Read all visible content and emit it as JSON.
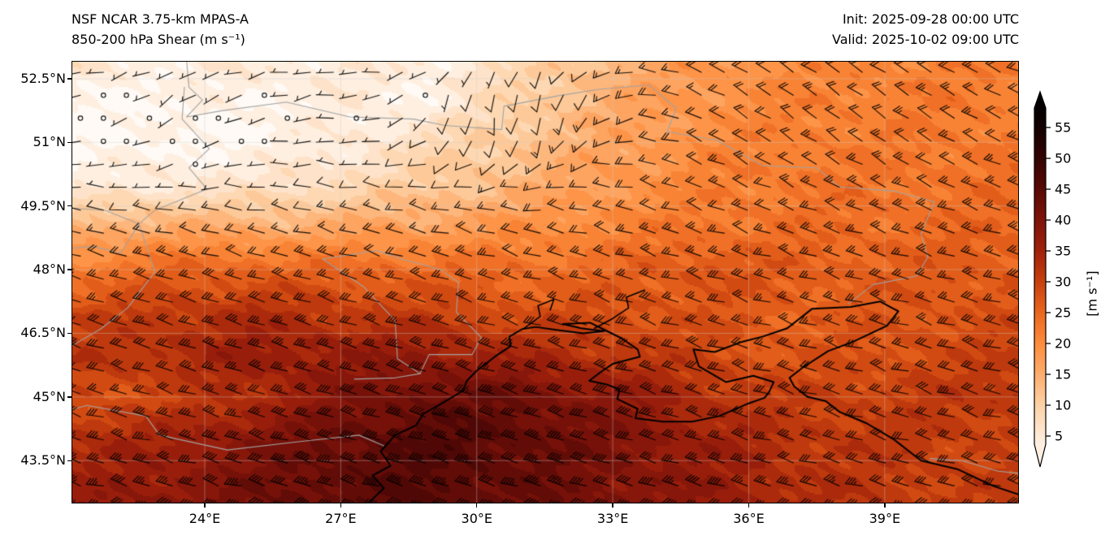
{
  "figure": {
    "title_line1": "NSF NCAR 3.75-km MPAS-A",
    "title_line2": "850-200 hPa Shear (m s⁻¹)",
    "init_label": "Init: 2025-09-28 00:00 UTC",
    "valid_label": "Valid: 2025-10-02 09:00 UTC"
  },
  "chart_data": {
    "type": "heatmap",
    "title": "850-200 hPa Shear (m s⁻¹)",
    "model": "NSF NCAR 3.75-km MPAS-A",
    "init_time": "2025-09-28 00:00 UTC",
    "valid_time": "2025-10-02 09:00 UTC",
    "units": "m s⁻¹",
    "extent": {
      "lon_min": 21.06,
      "lon_max": 41.96,
      "lat_min": 42.49,
      "lat_max": 52.92
    },
    "x_ticks": [
      {
        "label": "24°E",
        "lon": 24
      },
      {
        "label": "27°E",
        "lon": 27
      },
      {
        "label": "30°E",
        "lon": 30
      },
      {
        "label": "33°E",
        "lon": 33
      },
      {
        "label": "36°E",
        "lon": 36
      },
      {
        "label": "39°E",
        "lon": 39
      }
    ],
    "y_ticks": [
      {
        "label": "52.5°N",
        "lat": 52.5
      },
      {
        "label": "51°N",
        "lat": 51
      },
      {
        "label": "49.5°N",
        "lat": 49.5
      },
      {
        "label": "48°N",
        "lat": 48
      },
      {
        "label": "46.5°N",
        "lat": 46.5
      },
      {
        "label": "45°N",
        "lat": 45
      },
      {
        "label": "43.5°N",
        "lat": 43.5
      }
    ],
    "contour_interval": 2.5,
    "shear_grid": {
      "lons": [
        21,
        23,
        25,
        27,
        29,
        31,
        33,
        35,
        37,
        39,
        41.5
      ],
      "lats": [
        53,
        52,
        51,
        50,
        49,
        48,
        47,
        46,
        45,
        44,
        43,
        42.5
      ],
      "values_ms": [
        [
          6,
          4,
          5,
          5,
          4,
          8,
          14,
          18,
          20,
          21,
          22
        ],
        [
          2,
          2,
          3,
          4,
          3,
          10,
          15,
          19,
          21,
          22,
          22
        ],
        [
          2,
          2,
          2,
          4,
          8,
          12,
          16,
          20,
          22,
          22,
          23
        ],
        [
          4,
          5,
          6,
          8,
          11,
          14,
          18,
          21,
          23,
          23,
          24
        ],
        [
          14,
          16,
          15,
          16,
          17,
          19,
          21,
          23,
          24,
          24,
          25
        ],
        [
          22,
          25,
          26,
          25,
          25,
          24,
          25,
          28,
          26,
          26,
          27
        ],
        [
          29,
          31,
          33,
          31,
          30,
          28,
          28,
          27,
          26,
          27,
          28
        ],
        [
          31,
          33,
          36,
          37,
          37,
          34,
          32,
          29,
          27,
          28,
          30
        ],
        [
          28,
          29,
          33,
          39,
          43,
          42,
          38,
          33,
          30,
          30,
          32
        ],
        [
          33,
          35,
          39,
          43,
          46,
          44,
          40,
          36,
          32,
          31,
          30
        ],
        [
          35,
          37,
          41,
          44,
          45,
          43,
          40,
          37,
          33,
          31,
          30
        ],
        [
          36,
          38,
          41,
          44,
          45,
          43,
          40,
          37,
          34,
          31,
          30
        ]
      ]
    },
    "wind_barbs": {
      "convention": "half barb = 5 m s⁻¹, full barb = 10 m s⁻¹, calm circle < 2.5 m s⁻¹",
      "base_direction_from_deg": 287,
      "northwest_region_direction_from_deg": 237,
      "north_central_region_direction_from_deg": 192,
      "northeast_region_direction_from_deg": 307,
      "color": "#000000"
    },
    "colormap_stops": [
      [
        0,
        "#ffffff"
      ],
      [
        5,
        "#fee9d6"
      ],
      [
        10,
        "#fdd2a6"
      ],
      [
        15,
        "#fdac6d"
      ],
      [
        20,
        "#fd8c3c"
      ],
      [
        25,
        "#ea661e"
      ],
      [
        30,
        "#c8400e"
      ],
      [
        35,
        "#a1220b"
      ],
      [
        40,
        "#7e1309"
      ],
      [
        45,
        "#580906"
      ],
      [
        50,
        "#330303"
      ],
      [
        57.5,
        "#050000"
      ]
    ],
    "colorbar": {
      "ticks": [
        5,
        10,
        15,
        20,
        25,
        30,
        35,
        40,
        45,
        50,
        55
      ],
      "label": "[m s⁻¹]",
      "vmin": 2.5,
      "vmax": 57.5,
      "extend": "both"
    },
    "map_colors": {
      "coastline": "#000000",
      "border": "#a3a3a3",
      "graticule": "rgba(205,205,205,0.45)"
    },
    "coastlines": [
      [
        [
          27.6,
          42.49
        ],
        [
          27.95,
          42.85
        ],
        [
          27.7,
          43.15
        ],
        [
          28.1,
          43.38
        ],
        [
          27.88,
          43.72
        ],
        [
          28.2,
          44.1
        ],
        [
          28.66,
          44.33
        ],
        [
          28.82,
          44.6
        ],
        [
          29.15,
          44.8
        ],
        [
          29.7,
          45.15
        ],
        [
          29.78,
          45.38
        ],
        [
          30.0,
          45.62
        ],
        [
          30.4,
          45.95
        ],
        [
          30.75,
          46.2
        ],
        [
          30.72,
          46.42
        ],
        [
          31.0,
          46.6
        ],
        [
          31.3,
          46.65
        ],
        [
          31.75,
          46.58
        ],
        [
          32.35,
          46.5
        ],
        [
          32.8,
          46.55
        ],
        [
          32.3,
          46.62
        ],
        [
          31.9,
          46.72
        ],
        [
          32.5,
          46.75
        ],
        [
          33.2,
          46.38
        ],
        [
          33.55,
          46.12
        ],
        [
          33.6,
          45.95
        ],
        [
          33.0,
          45.78
        ],
        [
          32.75,
          45.6
        ],
        [
          32.48,
          45.38
        ],
        [
          32.85,
          45.3
        ],
        [
          33.15,
          45.18
        ],
        [
          33.1,
          44.95
        ],
        [
          33.55,
          44.72
        ],
        [
          33.5,
          44.5
        ],
        [
          34.1,
          44.42
        ],
        [
          34.75,
          44.42
        ],
        [
          35.35,
          44.55
        ],
        [
          36.0,
          44.85
        ],
        [
          36.35,
          44.98
        ],
        [
          36.45,
          45.12
        ],
        [
          36.55,
          45.35
        ],
        [
          36.1,
          45.5
        ],
        [
          35.5,
          45.35
        ],
        [
          34.9,
          45.72
        ],
        [
          34.78,
          46.12
        ],
        [
          35.25,
          46.06
        ],
        [
          35.85,
          46.3
        ],
        [
          36.3,
          46.42
        ],
        [
          36.85,
          46.62
        ],
        [
          37.4,
          47.08
        ],
        [
          38.25,
          47.12
        ],
        [
          38.9,
          47.25
        ],
        [
          39.3,
          47.02
        ],
        [
          39.05,
          46.68
        ],
        [
          38.3,
          46.3
        ],
        [
          37.75,
          46.08
        ],
        [
          37.2,
          45.7
        ],
        [
          36.9,
          45.45
        ],
        [
          37.0,
          45.25
        ],
        [
          37.3,
          45.0
        ],
        [
          37.7,
          44.9
        ],
        [
          38.0,
          44.65
        ],
        [
          38.6,
          44.38
        ],
        [
          39.2,
          44.0
        ],
        [
          39.8,
          43.5
        ],
        [
          40.6,
          43.3
        ],
        [
          41.4,
          42.9
        ],
        [
          41.96,
          42.7
        ]
      ]
    ],
    "rivers": [
      [
        [
          31.05,
          46.62
        ],
        [
          31.4,
          46.9
        ],
        [
          31.35,
          47.15
        ],
        [
          31.7,
          47.3
        ],
        [
          31.62,
          47.05
        ]
      ],
      [
        [
          32.6,
          46.62
        ],
        [
          33.0,
          46.85
        ],
        [
          33.35,
          47.1
        ],
        [
          33.3,
          47.35
        ],
        [
          33.7,
          47.52
        ]
      ]
    ],
    "borders": [
      [
        [
          23.6,
          52.92
        ],
        [
          23.65,
          52.3
        ],
        [
          23.95,
          52.0
        ],
        [
          23.6,
          51.6
        ],
        [
          24.4,
          51.75
        ],
        [
          25.8,
          51.95
        ],
        [
          27.2,
          51.6
        ],
        [
          28.6,
          51.55
        ],
        [
          29.3,
          51.4
        ],
        [
          30.55,
          51.3
        ],
        [
          30.6,
          51.85
        ],
        [
          31.8,
          52.1
        ],
        [
          32.7,
          52.25
        ],
        [
          33.8,
          52.35
        ],
        [
          34.4,
          51.8
        ],
        [
          34.2,
          51.25
        ],
        [
          35.3,
          51.05
        ],
        [
          36.3,
          50.45
        ],
        [
          37.5,
          50.4
        ],
        [
          38.0,
          49.95
        ],
        [
          39.2,
          49.85
        ],
        [
          40.1,
          49.6
        ],
        [
          39.8,
          48.85
        ],
        [
          39.95,
          48.3
        ],
        [
          39.7,
          47.85
        ],
        [
          38.75,
          47.65
        ],
        [
          38.2,
          47.2
        ]
      ],
      [
        [
          23.55,
          52.3
        ],
        [
          23.5,
          51.55
        ],
        [
          24.1,
          50.85
        ],
        [
          23.65,
          50.4
        ],
        [
          24.05,
          49.9
        ],
        [
          22.9,
          49.4
        ],
        [
          22.55,
          49.08
        ],
        [
          22.15,
          48.4
        ],
        [
          21.5,
          48.55
        ],
        [
          21.06,
          48.5
        ]
      ],
      [
        [
          22.55,
          49.08
        ],
        [
          21.8,
          49.4
        ],
        [
          21.06,
          49.45
        ]
      ],
      [
        [
          21.06,
          46.2
        ],
        [
          21.7,
          46.6
        ],
        [
          22.3,
          47.1
        ],
        [
          22.9,
          47.95
        ],
        [
          22.55,
          49.08
        ]
      ],
      [
        [
          26.6,
          48.25
        ],
        [
          27.5,
          47.6
        ],
        [
          28.2,
          46.8
        ],
        [
          28.25,
          45.9
        ],
        [
          28.75,
          45.55
        ],
        [
          28.2,
          45.45
        ],
        [
          27.3,
          45.42
        ]
      ],
      [
        [
          26.6,
          48.25
        ],
        [
          27.8,
          48.45
        ],
        [
          28.35,
          48.25
        ],
        [
          29.2,
          48.0
        ],
        [
          29.6,
          47.7
        ],
        [
          29.55,
          47.0
        ],
        [
          30.1,
          46.4
        ],
        [
          29.9,
          46.0
        ],
        [
          28.95,
          46.0
        ],
        [
          28.75,
          45.55
        ]
      ],
      [
        [
          21.4,
          44.8
        ],
        [
          22.7,
          44.55
        ],
        [
          23.0,
          44.1
        ],
        [
          24.5,
          43.75
        ],
        [
          26.1,
          43.95
        ],
        [
          27.4,
          44.1
        ],
        [
          27.95,
          43.85
        ]
      ],
      [
        [
          21.06,
          44.7
        ],
        [
          21.4,
          44.8
        ]
      ],
      [
        [
          40.0,
          43.55
        ],
        [
          40.7,
          43.5
        ],
        [
          41.5,
          43.25
        ],
        [
          41.96,
          43.2
        ]
      ]
    ]
  }
}
